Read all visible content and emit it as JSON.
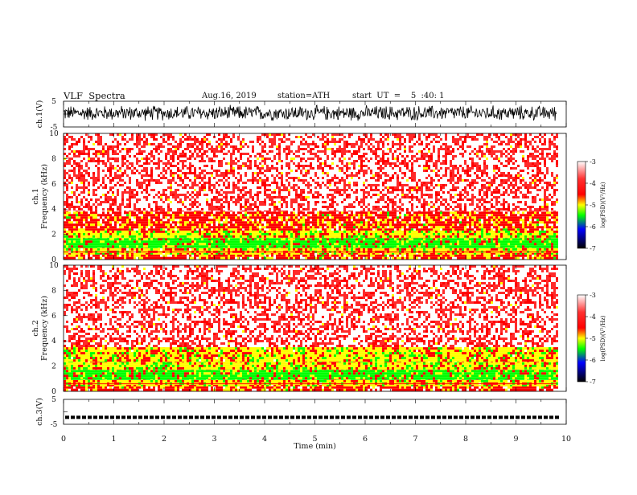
{
  "header": {
    "title": "VLF  Spectra",
    "date": "Aug.16, 2019",
    "station": "station=ATH",
    "start_ut": "start  UT  =    5  :40: 1"
  },
  "colorbar": {
    "label": "log(PSD)(V²/Hz)",
    "ticks": [
      "-3",
      "-4",
      "-5",
      "-6",
      "-7"
    ],
    "colors": [
      "#ffffff",
      "#ff0000",
      "#ffff00",
      "#00ff00",
      "#0000ff",
      "#000000"
    ]
  },
  "chart_data": [
    {
      "type": "line",
      "panel": "ch1",
      "ylabel": "ch.1(V)",
      "ylim": [
        -5,
        5
      ],
      "yticks": [
        "5",
        "-5"
      ],
      "xlim": [
        0,
        9.8
      ],
      "description_values": {
        "amplitude_range": [
          -3,
          4
        ]
      }
    },
    {
      "type": "heatmap",
      "panel": "spectrogram-ch1",
      "ylabel_channel": "ch.1",
      "ylabel": "Frequency  (kHz)",
      "ylim": [
        0,
        10
      ],
      "yticks": [
        "0",
        "2",
        "4",
        "6",
        "8",
        "10"
      ],
      "xlim": [
        0,
        9.8
      ],
      "bands": [
        {
          "f_from": 0,
          "f_to": 0.4,
          "level": -4.0
        },
        {
          "f_from": 0.4,
          "f_to": 0.9,
          "level": -4.4
        },
        {
          "f_from": 0.9,
          "f_to": 1.7,
          "level": -5.0
        },
        {
          "f_from": 1.7,
          "f_to": 2.3,
          "level": -4.5
        },
        {
          "f_from": 2.3,
          "f_to": 3.8,
          "level": -4.0
        },
        {
          "f_from": 3.8,
          "f_to": 10,
          "level": -3.4
        }
      ]
    },
    {
      "type": "heatmap",
      "panel": "spectrogram-ch2",
      "ylabel_channel": "ch.2",
      "ylabel": "Frequency  (kHz)",
      "ylim": [
        0,
        10
      ],
      "yticks": [
        "0",
        "2",
        "4",
        "6",
        "8",
        "10"
      ],
      "xlim": [
        0,
        9.8
      ],
      "bands": [
        {
          "f_from": 0,
          "f_to": 0.4,
          "level": -4.0
        },
        {
          "f_from": 0.4,
          "f_to": 0.9,
          "level": -4.4
        },
        {
          "f_from": 0.9,
          "f_to": 1.7,
          "level": -5.0
        },
        {
          "f_from": 1.7,
          "f_to": 2.3,
          "level": -4.5
        },
        {
          "f_from": 2.3,
          "f_to": 3.5,
          "level": -4.4
        },
        {
          "f_from": 3.5,
          "f_to": 10,
          "level": -3.4
        }
      ]
    },
    {
      "type": "line",
      "panel": "ch3",
      "ylabel": "ch.3(V)",
      "ylim": [
        -5,
        5
      ],
      "yticks": [
        "5",
        "-5"
      ],
      "xlim": [
        0,
        9.8
      ],
      "description_values": {
        "mean_level": -2.2
      }
    }
  ],
  "xaxis": {
    "label": "Time  (min)",
    "ticks": [
      "0",
      "1",
      "2",
      "3",
      "4",
      "5",
      "6",
      "7",
      "8",
      "9",
      "10"
    ],
    "xlim": [
      0,
      10
    ]
  }
}
